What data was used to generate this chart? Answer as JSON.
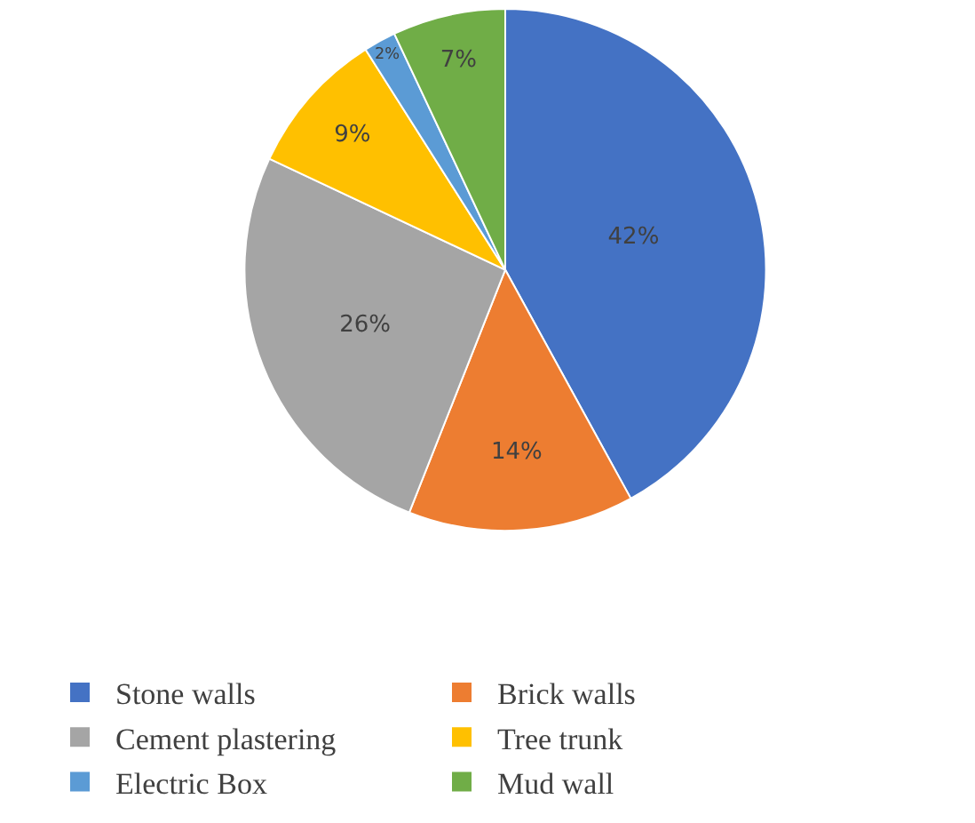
{
  "chart_data": {
    "type": "pie",
    "categories": [
      "Stone walls",
      "Brick walls",
      "Cement plastering",
      "Tree trunk",
      "Electric Box",
      "Mud wall"
    ],
    "values": [
      42,
      14,
      26,
      9,
      2,
      7
    ],
    "colors": [
      "#4472c4",
      "#ed7d31",
      "#a5a5a5",
      "#ffc000",
      "#5b9bd5",
      "#70ad47"
    ],
    "value_labels": [
      "42%",
      "14%",
      "26%",
      "9%",
      "2%",
      "7%"
    ],
    "legend": "bottom"
  }
}
